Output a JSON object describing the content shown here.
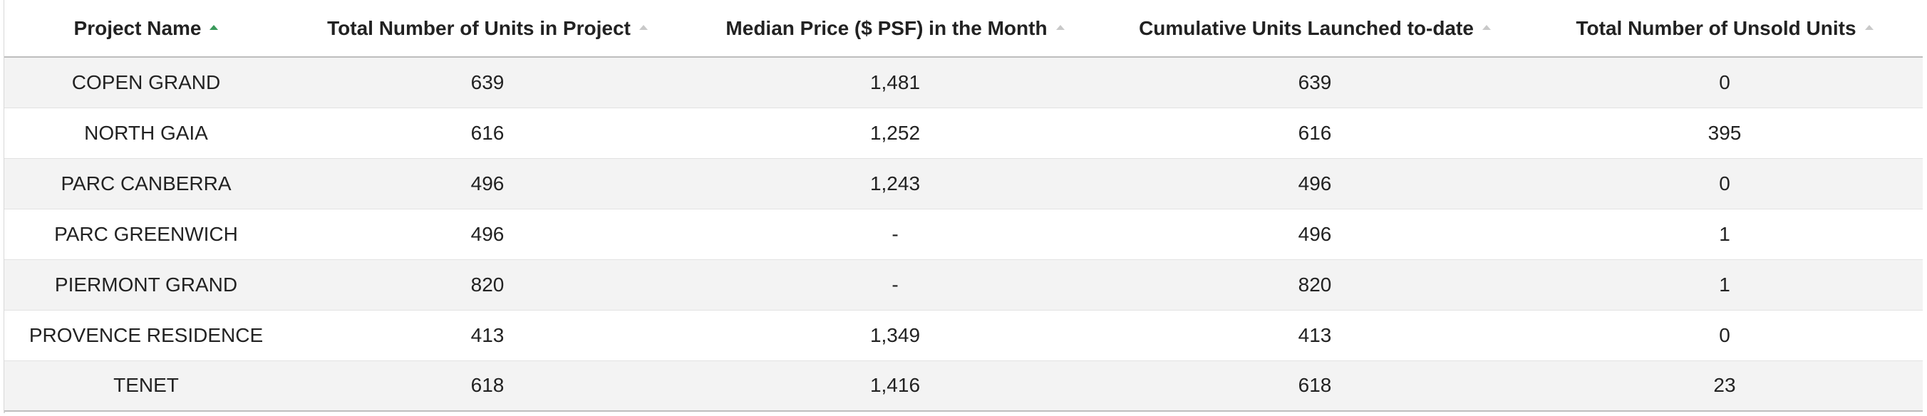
{
  "table": {
    "columns": [
      {
        "label": "Project Name",
        "sort": "asc"
      },
      {
        "label": "Total Number of Units in Project",
        "sort": "none"
      },
      {
        "label": "Median Price ($ PSF) in the Month",
        "sort": "none"
      },
      {
        "label": "Cumulative Units Launched to-date",
        "sort": "none"
      },
      {
        "label": "Total Number of Unsold Units",
        "sort": "none"
      }
    ],
    "rows": [
      [
        "COPEN GRAND",
        "639",
        "1,481",
        "639",
        "0"
      ],
      [
        "NORTH GAIA",
        "616",
        "1,252",
        "616",
        "395"
      ],
      [
        "PARC CANBERRA",
        "496",
        "1,243",
        "496",
        "0"
      ],
      [
        "PARC GREENWICH",
        "496",
        "-",
        "496",
        "1"
      ],
      [
        "PIERMONT GRAND",
        "820",
        "-",
        "820",
        "1"
      ],
      [
        "PROVENCE RESIDENCE",
        "413",
        "1,349",
        "413",
        "0"
      ],
      [
        "TENET",
        "618",
        "1,416",
        "618",
        "23"
      ]
    ]
  },
  "colors": {
    "active_sort": "#3a9a5b",
    "inactive_sort": "#c9c9c9",
    "striped_row": "#f3f3f3"
  }
}
